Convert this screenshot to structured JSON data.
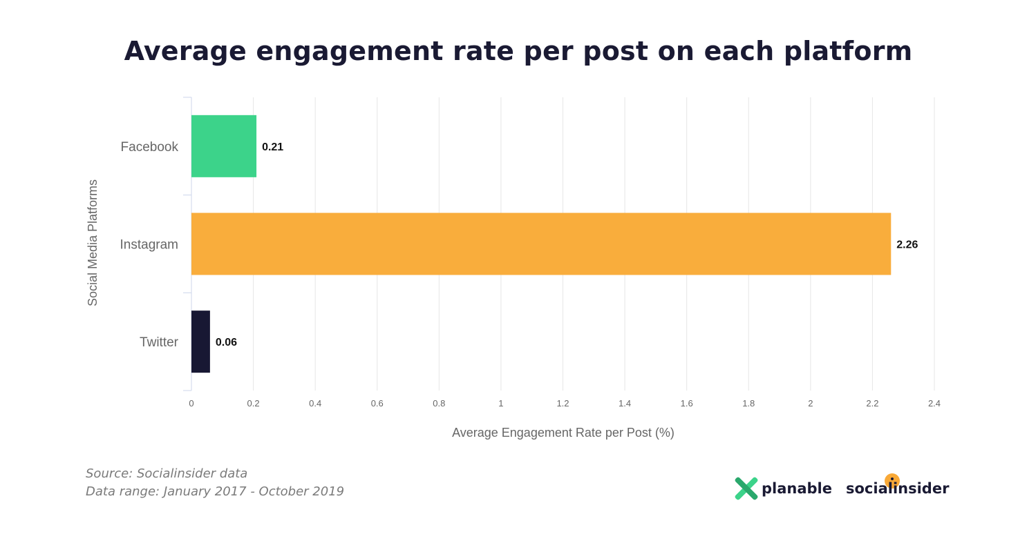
{
  "chart_data": {
    "type": "bar",
    "orientation": "horizontal",
    "title": "Average engagement rate per post on each platform",
    "xlabel": "Average Engagement Rate per Post (%)",
    "ylabel": "Social Media Platforms",
    "categories": [
      "Facebook",
      "Instagram",
      "Twitter"
    ],
    "values": [
      0.21,
      2.26,
      0.06
    ],
    "value_labels": [
      "0.21",
      "2.26",
      "0.06"
    ],
    "colors": [
      "#3cd38a",
      "#f9ad3c",
      "#181833"
    ],
    "xlim": [
      0,
      2.4
    ],
    "ticks": [
      0,
      0.2,
      0.4,
      0.6,
      0.8,
      1,
      1.2,
      1.4,
      1.6,
      1.8,
      2,
      2.2,
      2.4
    ],
    "tick_labels": [
      "0",
      "0.2",
      "0.4",
      "0.6",
      "0.8",
      "1",
      "1.2",
      "1.4",
      "1.6",
      "1.8",
      "2",
      "2.2",
      "2.4"
    ],
    "grid": true
  },
  "footer": {
    "source": "Source: Socialinsider data",
    "range": "Data range: January 2017 - October 2019"
  },
  "logos": {
    "planable": "planable",
    "socialinsider": "socialinsider"
  },
  "logo_icons": [
    "planable-logo-icon",
    "socialinsider-logo-icon"
  ]
}
